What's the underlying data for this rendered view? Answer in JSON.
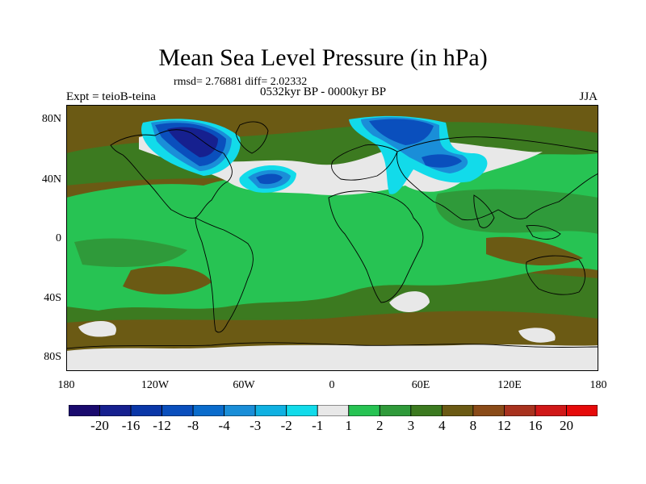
{
  "title": "Mean Sea Level Pressure (in hPa)",
  "stats": "rmsd= 2.76881  diff= 2.02332",
  "period": "0532kyr BP - 0000kyr BP",
  "experiment": "Expt = teioB-teina",
  "season": "JJA",
  "y_axis": {
    "labels": [
      "80N",
      "40N",
      "0",
      "40S",
      "80S"
    ],
    "values": [
      80,
      40,
      0,
      -40,
      -80
    ]
  },
  "x_axis": {
    "labels": [
      "180",
      "120W",
      "60W",
      "0",
      "60E",
      "120E",
      "180"
    ],
    "values": [
      -180,
      -120,
      -60,
      0,
      60,
      120,
      180
    ]
  },
  "colorbar": {
    "labels": [
      "-20",
      "-16",
      "-12",
      "-8",
      "-4",
      "-3",
      "-2",
      "-1",
      "1",
      "2",
      "3",
      "4",
      "8",
      "12",
      "16",
      "20"
    ],
    "colors": [
      "#1a0a6e",
      "#16208f",
      "#0a37a8",
      "#0a4fbd",
      "#0a6ccc",
      "#1a8ed8",
      "#10b1e2",
      "#12dbea",
      "#e8e8e8",
      "#27c353",
      "#2f9a3a",
      "#3c7a20",
      "#6b5a14",
      "#8a4b18",
      "#a8321e",
      "#d01818",
      "#e60a0a"
    ]
  },
  "colors": {
    "green_light": "#27c353",
    "green_mid": "#2f9a3a",
    "green_dark": "#3c7a20",
    "brown": "#6b5a14",
    "white": "#e8e8e8",
    "blue_light": "#12dbea",
    "blue_mid": "#1a8ed8",
    "blue_dark": "#0a4fbd",
    "blue_deep": "#16208f"
  }
}
